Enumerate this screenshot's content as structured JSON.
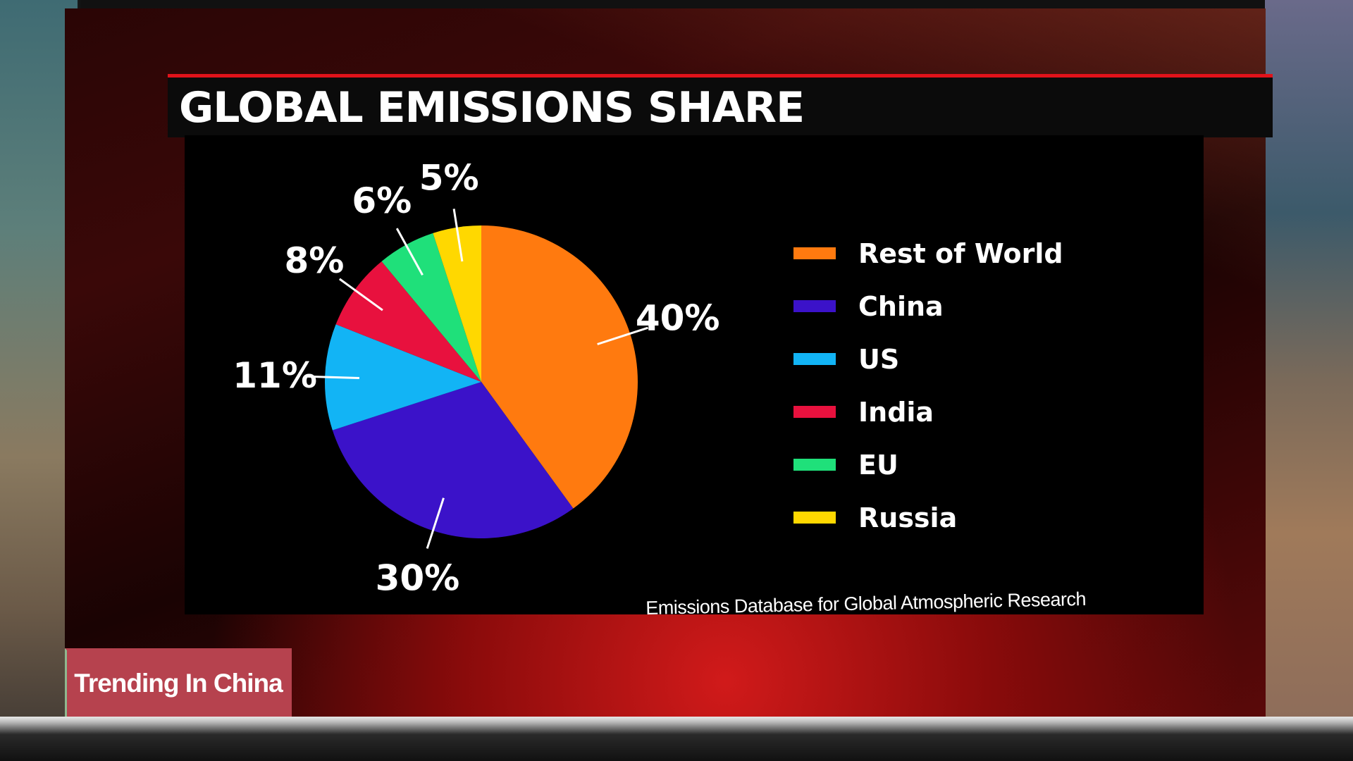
{
  "title": "GLOBAL EMISSIONS SHARE",
  "source": "Emissions Database for Global Atmospheric Research",
  "ticker_tag": "Trending In China",
  "chart_data": {
    "type": "pie",
    "title": "GLOBAL EMISSIONS SHARE",
    "slices": [
      {
        "name": "Rest of World",
        "value": 40,
        "label": "40%",
        "color": "#ff7a0f"
      },
      {
        "name": "China",
        "value": 30,
        "label": "30%",
        "color": "#3b12c9"
      },
      {
        "name": "US",
        "value": 11,
        "label": "11%",
        "color": "#12b4f5"
      },
      {
        "name": "India",
        "value": 8,
        "label": "8%",
        "color": "#e8113e"
      },
      {
        "name": "EU",
        "value": 6,
        "label": "6%",
        "color": "#1fe07a"
      },
      {
        "name": "Russia",
        "value": 5,
        "label": "5%",
        "color": "#ffd800"
      }
    ],
    "legend": [
      "Rest of World",
      "China",
      "US",
      "India",
      "EU",
      "Russia"
    ],
    "legend_position": "right"
  }
}
